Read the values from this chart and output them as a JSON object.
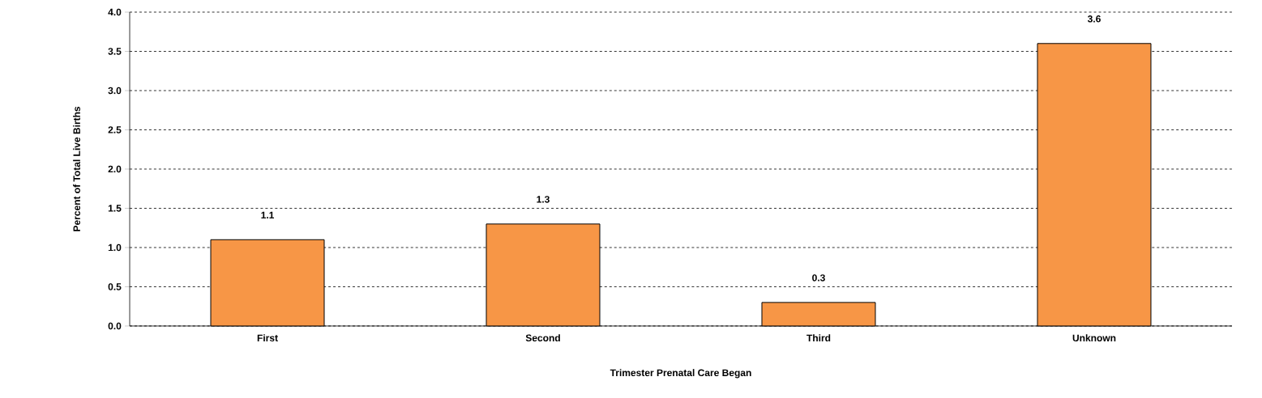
{
  "chart_data": {
    "type": "bar",
    "xlabel": "Trimester Prenatal Care Began",
    "ylabel": "Percent of Total Live Births",
    "categories": [
      "First",
      "Second",
      "Third",
      "Unknown"
    ],
    "values": [
      1.1,
      1.3,
      0.3,
      3.6
    ],
    "color": "#f79646",
    "ylim": [
      0,
      4
    ],
    "yticks": [
      {
        "value": 0,
        "label": "0.0"
      },
      {
        "value": 0.5,
        "label": "0.5"
      },
      {
        "value": 1,
        "label": "1.0"
      },
      {
        "value": 1.5,
        "label": "1.5"
      },
      {
        "value": 2,
        "label": "2.0"
      },
      {
        "value": 2.5,
        "label": "2.5"
      },
      {
        "value": 3,
        "label": "3.0"
      },
      {
        "value": 3.5,
        "label": "3.5"
      },
      {
        "value": 4,
        "label": "4.0"
      }
    ],
    "grid": "y",
    "data_labels": true
  }
}
